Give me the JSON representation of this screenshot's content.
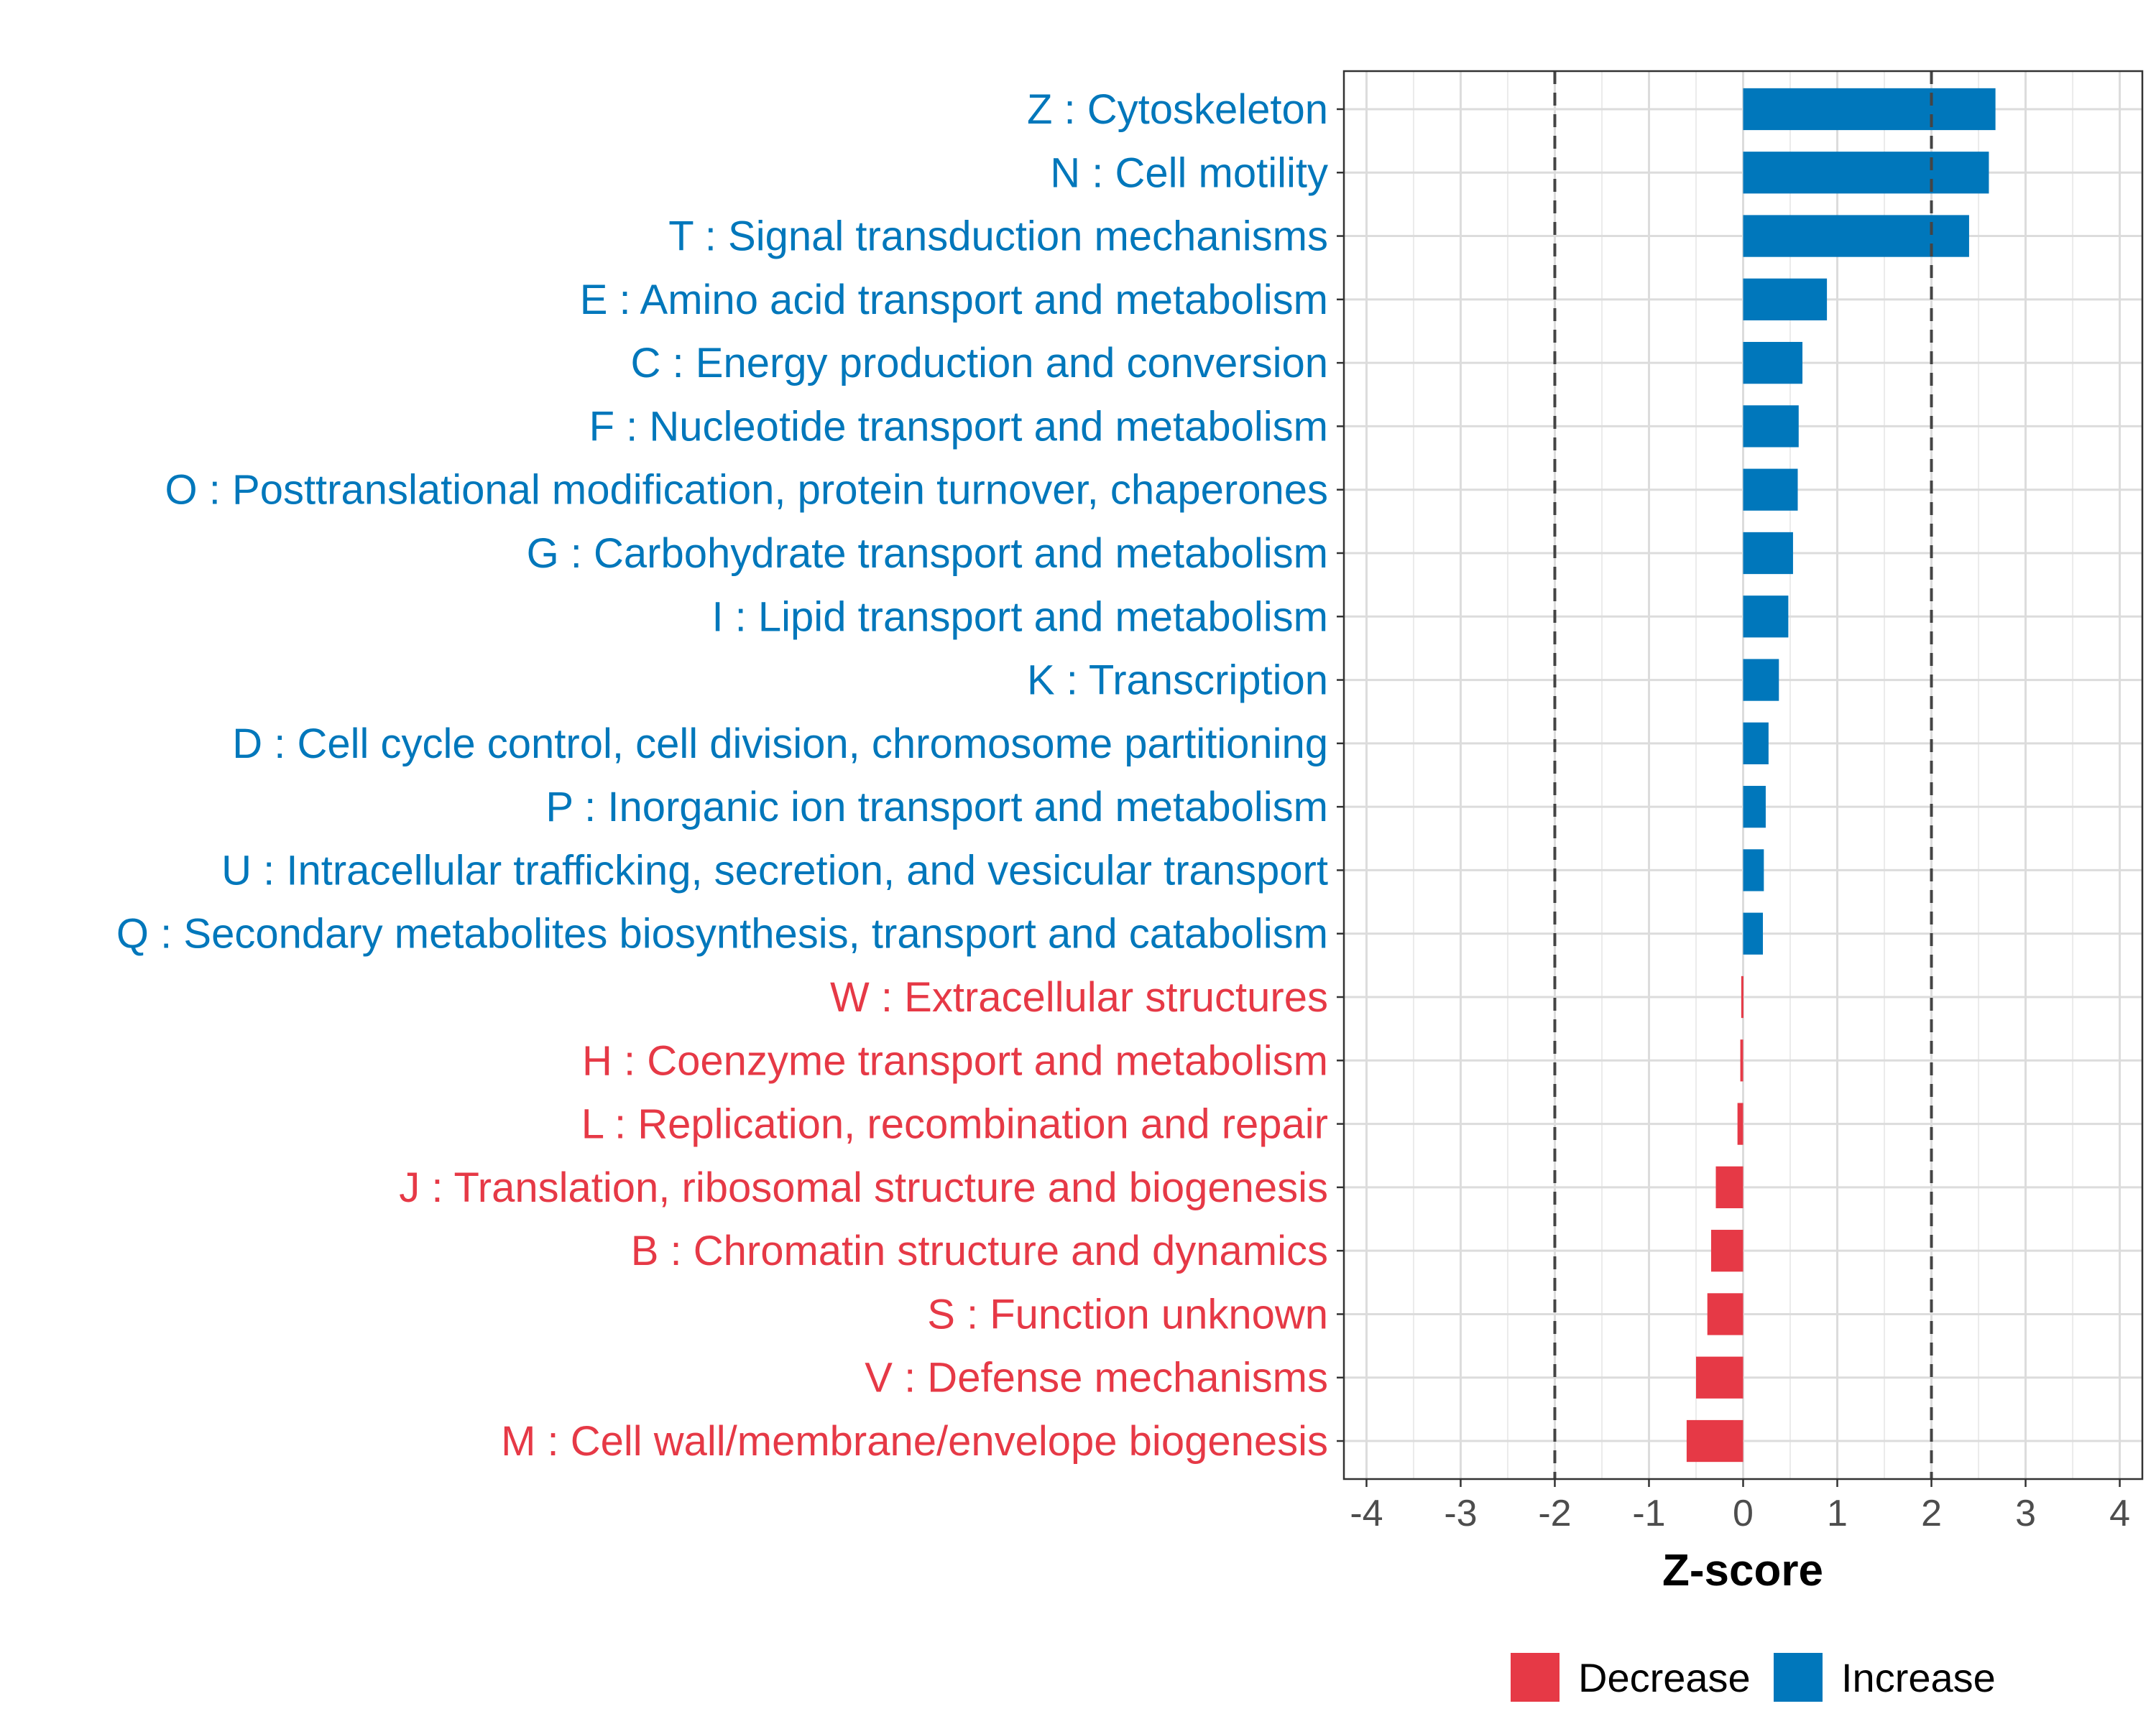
{
  "chart_data": {
    "type": "bar",
    "orientation": "horizontal",
    "xlabel": "Z-score",
    "xlim": [
      -4,
      4
    ],
    "xticks": [
      -4,
      -3,
      -2,
      -1,
      0,
      1,
      2,
      3,
      4
    ],
    "reference_lines": [
      -2,
      2
    ],
    "grid": true,
    "legend_position": "bottom",
    "legend": [
      {
        "name": "Decrease",
        "color": "#E63946"
      },
      {
        "name": "Increase",
        "color": "#0077BB"
      }
    ],
    "categories": [
      "Z : Cytoskeleton",
      "N : Cell motility",
      "T : Signal transduction mechanisms",
      "E : Amino acid transport and metabolism",
      "C : Energy production and conversion",
      "F : Nucleotide transport and metabolism",
      "O : Posttranslational modification, protein turnover, chaperones",
      "G : Carbohydrate transport and metabolism",
      "I : Lipid transport and metabolism",
      "K : Transcription",
      "D : Cell cycle control, cell division, chromosome partitioning",
      "P : Inorganic ion transport and metabolism",
      "U : Intracellular trafficking, secretion, and vesicular transport",
      "Q : Secondary metabolites biosynthesis, transport and catabolism",
      "W : Extracellular structures",
      "H : Coenzyme transport and metabolism",
      "L : Replication, recombination and repair",
      "J : Translation, ribosomal structure and biogenesis",
      "B : Chromatin structure and dynamics",
      "S : Function unknown",
      "V : Defense mechanisms",
      "M : Cell wall/membrane/envelope biogenesis"
    ],
    "values": [
      2.68,
      2.61,
      2.4,
      0.89,
      0.63,
      0.59,
      0.58,
      0.53,
      0.48,
      0.38,
      0.27,
      0.24,
      0.22,
      0.21,
      -0.02,
      -0.03,
      -0.06,
      -0.29,
      -0.34,
      -0.38,
      -0.5,
      -0.6
    ],
    "colors": {
      "increase": "#0077BB",
      "decrease": "#E63946"
    }
  }
}
